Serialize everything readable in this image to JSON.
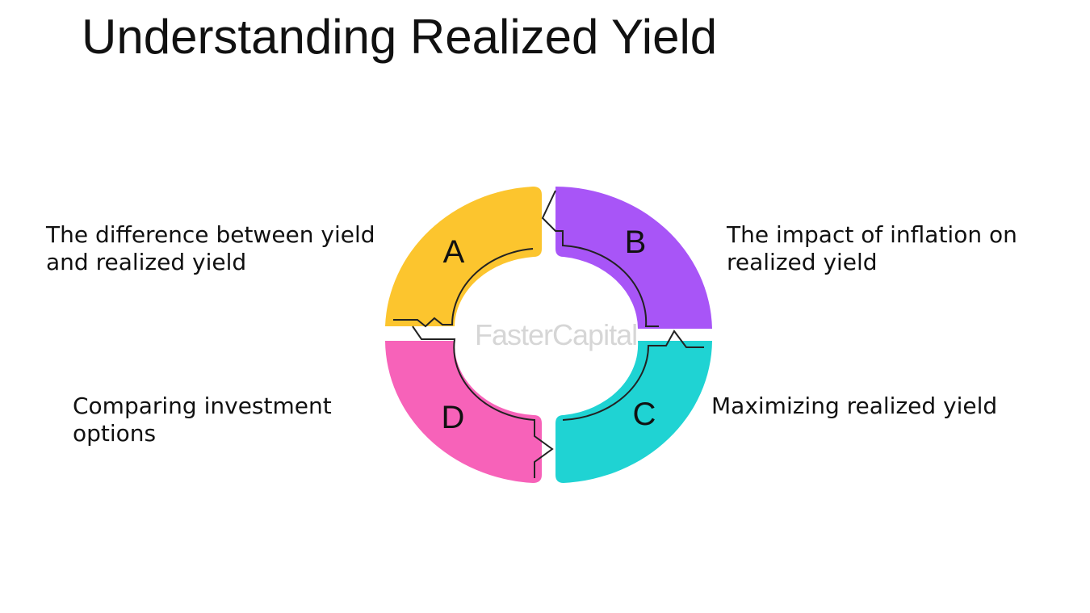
{
  "title": "Understanding Realized Yield",
  "watermark": "FasterCapital",
  "segments": [
    {
      "letter": "A",
      "label_lines": [
        "The difference between yield",
        "and realized yield"
      ],
      "color": "#FCC52E"
    },
    {
      "letter": "B",
      "label_lines": [
        "The impact of inflation on",
        "realized yield"
      ],
      "color": "#A855F7"
    },
    {
      "letter": "C",
      "label_lines": [
        "Maximizing realized yield"
      ],
      "color": "#1FD3D3"
    },
    {
      "letter": "D",
      "label_lines": [
        "Comparing investment",
        "options"
      ],
      "color": "#F762B9"
    }
  ]
}
